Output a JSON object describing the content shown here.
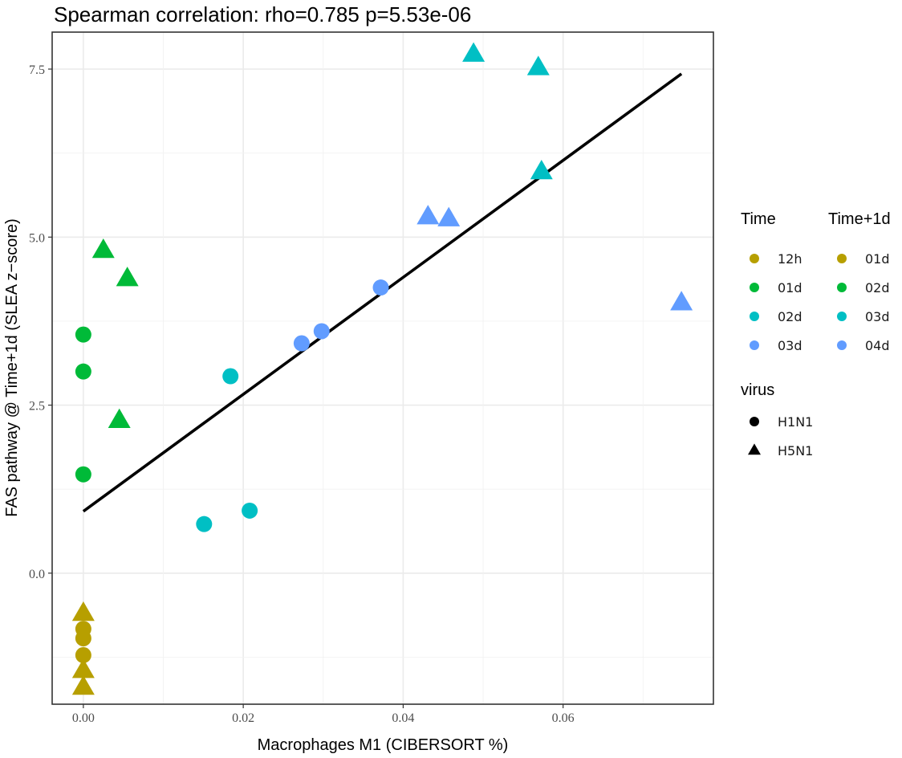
{
  "chart_data": {
    "type": "scatter",
    "title": "Spearman correlation: rho=0.785 p=5.53e-06",
    "xlabel": "Macrophages M1 (CIBERSORT %)",
    "ylabel": "FAS pathway @ Time+1d (SLEA z−score)",
    "xlim": [
      -0.0039,
      0.0788
    ],
    "ylim": [
      -1.95,
      8.05
    ],
    "x_ticks": [
      0.0,
      0.02,
      0.04,
      0.06
    ],
    "x_tick_labels": [
      "0.00",
      "0.02",
      "0.04",
      "0.06"
    ],
    "y_ticks": [
      0.0,
      2.5,
      5.0,
      7.5
    ],
    "y_tick_labels": [
      "0.0",
      "2.5",
      "5.0",
      "7.5"
    ],
    "grid": true,
    "legend_position": "right",
    "colors": {
      "12h": "#B79F00",
      "01d": "#00BA38",
      "02d": "#00BFC4",
      "03d": "#619CFF"
    },
    "legends": {
      "time": {
        "title": "Time",
        "entries": [
          {
            "label": "12h",
            "color_key": "12h"
          },
          {
            "label": "01d",
            "color_key": "01d"
          },
          {
            "label": "02d",
            "color_key": "02d"
          },
          {
            "label": "03d",
            "color_key": "03d"
          }
        ]
      },
      "time_plus": {
        "title": "Time+1d",
        "entries": [
          {
            "label": "01d",
            "color_key": "12h"
          },
          {
            "label": "02d",
            "color_key": "01d"
          },
          {
            "label": "03d",
            "color_key": "02d"
          },
          {
            "label": "04d",
            "color_key": "03d"
          }
        ]
      },
      "virus": {
        "title": "virus",
        "entries": [
          {
            "label": "H1N1",
            "shape": "circle"
          },
          {
            "label": "H5N1",
            "shape": "triangle"
          }
        ]
      }
    },
    "regression_line": {
      "x": [
        0.0,
        0.0748
      ],
      "y": [
        0.92,
        7.43
      ]
    },
    "points": [
      {
        "x": 0.0,
        "y": -0.83,
        "time": "12h",
        "virus": "H1N1"
      },
      {
        "x": 0.0,
        "y": -0.97,
        "time": "12h",
        "virus": "H1N1"
      },
      {
        "x": 0.0,
        "y": -1.22,
        "time": "12h",
        "virus": "H1N1"
      },
      {
        "x": 0.0,
        "y": -0.6,
        "time": "12h",
        "virus": "H5N1"
      },
      {
        "x": 0.0,
        "y": -1.45,
        "time": "12h",
        "virus": "H5N1"
      },
      {
        "x": 0.0,
        "y": -1.7,
        "time": "12h",
        "virus": "H5N1"
      },
      {
        "x": 0.0,
        "y": 3.55,
        "time": "01d",
        "virus": "H1N1"
      },
      {
        "x": 0.0,
        "y": 3.0,
        "time": "01d",
        "virus": "H1N1"
      },
      {
        "x": 0.0,
        "y": 1.47,
        "time": "01d",
        "virus": "H1N1"
      },
      {
        "x": 0.0025,
        "y": 4.8,
        "time": "01d",
        "virus": "H5N1"
      },
      {
        "x": 0.0055,
        "y": 4.38,
        "time": "01d",
        "virus": "H5N1"
      },
      {
        "x": 0.0045,
        "y": 2.27,
        "time": "01d",
        "virus": "H5N1"
      },
      {
        "x": 0.0184,
        "y": 2.93,
        "time": "02d",
        "virus": "H1N1"
      },
      {
        "x": 0.0151,
        "y": 0.73,
        "time": "02d",
        "virus": "H1N1"
      },
      {
        "x": 0.0208,
        "y": 0.93,
        "time": "02d",
        "virus": "H1N1"
      },
      {
        "x": 0.0488,
        "y": 7.72,
        "time": "02d",
        "virus": "H5N1"
      },
      {
        "x": 0.0569,
        "y": 7.52,
        "time": "02d",
        "virus": "H5N1"
      },
      {
        "x": 0.0573,
        "y": 5.97,
        "time": "02d",
        "virus": "H5N1"
      },
      {
        "x": 0.0273,
        "y": 3.42,
        "time": "03d",
        "virus": "H1N1"
      },
      {
        "x": 0.0298,
        "y": 3.6,
        "time": "03d",
        "virus": "H1N1"
      },
      {
        "x": 0.0372,
        "y": 4.25,
        "time": "03d",
        "virus": "H1N1"
      },
      {
        "x": 0.0431,
        "y": 5.3,
        "time": "03d",
        "virus": "H5N1"
      },
      {
        "x": 0.0457,
        "y": 5.27,
        "time": "03d",
        "virus": "H5N1"
      },
      {
        "x": 0.0748,
        "y": 4.02,
        "time": "03d",
        "virus": "H5N1"
      }
    ]
  }
}
